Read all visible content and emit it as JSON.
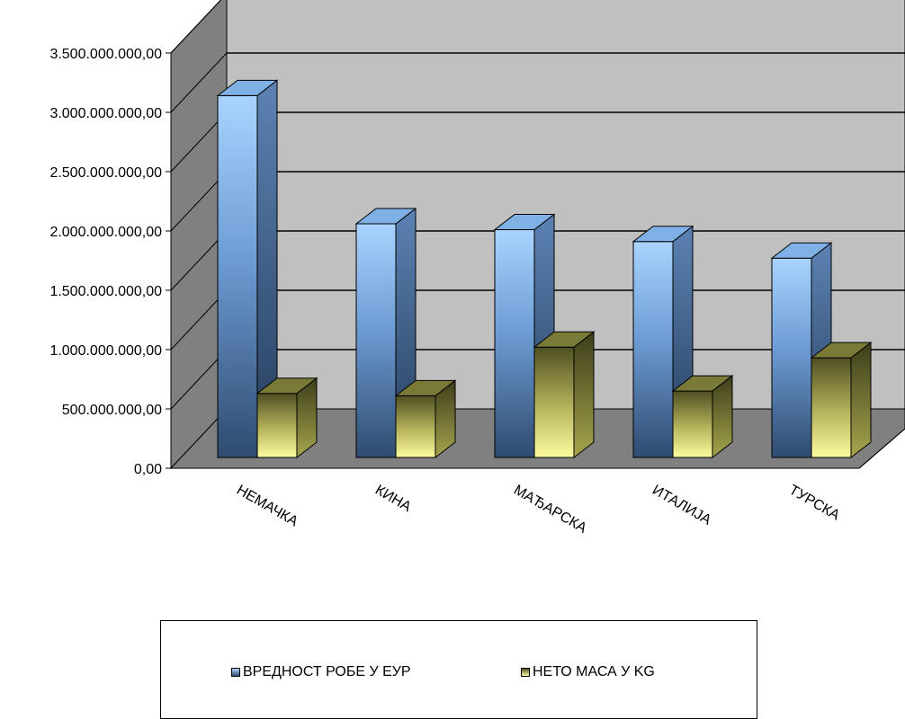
{
  "chart_data": {
    "type": "bar",
    "categories": [
      "НЕМАЧКА",
      "КИНА",
      "МАЂАРСКА",
      "ИТАЛИЈА",
      "ТУРСКА"
    ],
    "series": [
      {
        "name": "ВРЕДНОСТ РОБЕ У ЕУР",
        "values": [
          3050000000,
          1970000000,
          1920000000,
          1820000000,
          1680000000
        ],
        "color": "#7fa7d8"
      },
      {
        "name": "НЕТО МАСА У KG",
        "values": [
          540000000,
          520000000,
          930000000,
          560000000,
          840000000
        ],
        "color": "#d4d27a"
      }
    ],
    "yticks": [
      "0,00",
      "500.000.000,00",
      "1.000.000.000,00",
      "1.500.000.000,00",
      "2.000.000.000,00",
      "2.500.000.000,00",
      "3.000.000.000,00",
      "3.500.000.000,00"
    ],
    "ylim": [
      0,
      3500000000
    ],
    "grid": true,
    "legend_position": "bottom",
    "colors": {
      "wall": "#c0c0c0",
      "side_wall": "#808080",
      "floor": "#808080"
    }
  }
}
